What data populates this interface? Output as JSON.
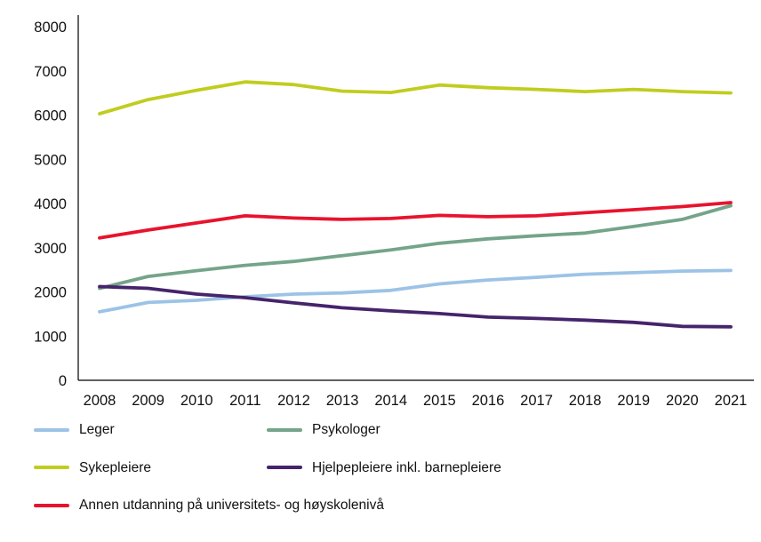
{
  "chart_data": {
    "type": "line",
    "x": [
      2008,
      2009,
      2010,
      2011,
      2012,
      2013,
      2014,
      2015,
      2016,
      2017,
      2018,
      2019,
      2020,
      2021
    ],
    "series": [
      {
        "name": "Leger",
        "color": "#9cc3e6",
        "values": [
          1550,
          1760,
          1810,
          1890,
          1950,
          1975,
          2035,
          2180,
          2270,
          2330,
          2400,
          2435,
          2470,
          2485
        ]
      },
      {
        "name": "Psykologer",
        "color": "#74a489",
        "values": [
          2080,
          2350,
          2480,
          2600,
          2690,
          2820,
          2950,
          3100,
          3200,
          3270,
          3330,
          3480,
          3640,
          3950
        ]
      },
      {
        "name": "Sykepleiere",
        "color": "#c0cd1f",
        "values": [
          6030,
          6350,
          6560,
          6750,
          6690,
          6540,
          6510,
          6680,
          6620,
          6580,
          6530,
          6580,
          6530,
          6500
        ]
      },
      {
        "name": "Hjelpepleiere inkl. barnepleiere",
        "color": "#45246b",
        "values": [
          2120,
          2080,
          1950,
          1870,
          1750,
          1640,
          1570,
          1510,
          1430,
          1400,
          1360,
          1310,
          1220,
          1210
        ]
      },
      {
        "name": "Annen utdanning på universitets- og høyskolenivå",
        "color": "#e8132d",
        "values": [
          3220,
          3400,
          3560,
          3720,
          3670,
          3640,
          3660,
          3730,
          3700,
          3720,
          3790,
          3860,
          3930,
          4020
        ]
      }
    ],
    "title": "",
    "xlabel": "",
    "ylabel": "",
    "ylim": [
      0,
      8000
    ],
    "yticks": [
      0,
      1000,
      2000,
      3000,
      4000,
      5000,
      6000,
      7000,
      8000
    ],
    "grid": false,
    "legend_position": "bottom"
  }
}
